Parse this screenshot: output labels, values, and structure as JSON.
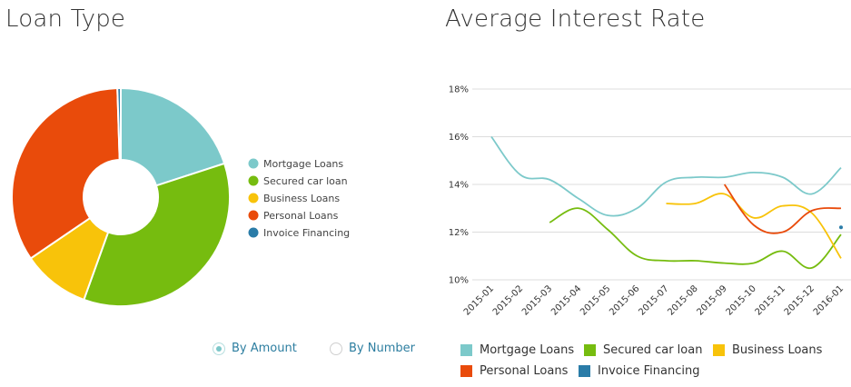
{
  "loan_title": "Loan Type",
  "rate_title": "Average Interest Rate",
  "colors": {
    "mortgage": "#7cc9ca",
    "secured": "#76bc0f",
    "business": "#f8c30a",
    "personal": "#e94b0b",
    "invoice": "#2a7ca8"
  },
  "radios": [
    {
      "label": "By Amount",
      "selected": true
    },
    {
      "label": "By Number",
      "selected": false
    }
  ],
  "chart_data": [
    {
      "type": "pie",
      "title": "Loan Type",
      "labels": [
        "Mortgage Loans",
        "Secured car loan",
        "Business Loans",
        "Personal Loans",
        "Invoice Financing"
      ],
      "values": [
        20,
        35.5,
        10,
        34,
        0.5
      ],
      "legend": "right"
    },
    {
      "type": "line",
      "title": "Average Interest Rate",
      "x": [
        "2015-01",
        "2015-02",
        "2015-03",
        "2015-04",
        "2015-05",
        "2015-06",
        "2015-07",
        "2015-08",
        "2015-09",
        "2015-10",
        "2015-11",
        "2015-12",
        "2016-01"
      ],
      "ylim": [
        10,
        18
      ],
      "yticks": [
        "10%",
        "12%",
        "14%",
        "16%",
        "18%"
      ],
      "grid": true,
      "legend": "bottom",
      "series": [
        {
          "name": "Mortgage Loans",
          "values": [
            16.0,
            14.4,
            14.2,
            13.4,
            12.7,
            13.0,
            14.1,
            14.3,
            14.3,
            14.5,
            14.3,
            13.6,
            14.7
          ]
        },
        {
          "name": "Secured car loan",
          "values": [
            null,
            null,
            12.4,
            13.0,
            12.1,
            11.0,
            10.8,
            10.8,
            10.7,
            10.7,
            11.2,
            10.5,
            11.9
          ]
        },
        {
          "name": "Business Loans",
          "values": [
            null,
            null,
            null,
            null,
            null,
            null,
            13.2,
            13.2,
            13.6,
            12.6,
            13.1,
            12.8,
            10.9
          ]
        },
        {
          "name": "Personal Loans",
          "values": [
            null,
            null,
            null,
            null,
            null,
            null,
            null,
            null,
            14.0,
            12.3,
            12.0,
            12.9,
            13.0
          ]
        },
        {
          "name": "Invoice Financing",
          "values": [
            null,
            null,
            null,
            null,
            null,
            null,
            null,
            null,
            null,
            null,
            null,
            null,
            12.2
          ]
        }
      ]
    }
  ]
}
